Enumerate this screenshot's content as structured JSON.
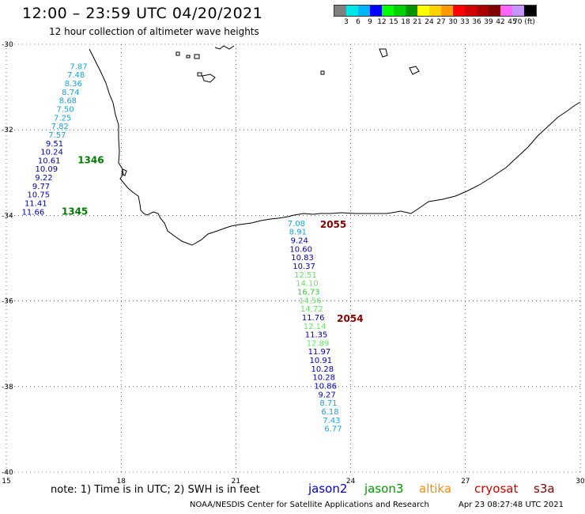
{
  "header": {
    "title": "12:00 – 23:59 UTC 04/20/2021",
    "subtitle": "12 hour collection of altimeter wave heights"
  },
  "legend": {
    "colors": [
      "#808080",
      "#00e6e6",
      "#00b4ff",
      "#0000ff",
      "#00ff00",
      "#00d200",
      "#009600",
      "#ffff00",
      "#ffd200",
      "#ff9b00",
      "#ff0000",
      "#d20000",
      "#aa0000",
      "#800000",
      "#ff64ff",
      "#c896ff",
      "#000000"
    ],
    "labels": [
      "3",
      "6",
      "9",
      "12",
      "15",
      "18",
      "21",
      "24",
      "27",
      "30",
      "33",
      "36",
      "39",
      "42",
      "45",
      "70 (ft)"
    ]
  },
  "map": {
    "lon_range": [
      15,
      30
    ],
    "lat_range": [
      -40,
      -30
    ],
    "lon_ticks": [
      15,
      18,
      21,
      24,
      27,
      30
    ],
    "lat_ticks": [
      -30,
      -32,
      -34,
      -36,
      -38,
      -40
    ],
    "lon_tick_labels": [
      "15",
      "18",
      "21",
      "24",
      "27",
      "30"
    ],
    "lat_tick_labels": [
      "-30",
      "-32",
      "-34",
      "-36",
      "-38",
      "-40"
    ]
  },
  "tracks": [
    {
      "satellite": "jason3",
      "pass_id": "1346",
      "pass_color": "#007a00",
      "points": [
        {
          "lon": 16.89,
          "lat": -30.58,
          "swh": "7.87"
        },
        {
          "lon": 16.82,
          "lat": -30.78,
          "swh": "7.48"
        },
        {
          "lon": 16.75,
          "lat": -30.98,
          "swh": "8.36"
        },
        {
          "lon": 16.68,
          "lat": -31.18,
          "swh": "8.74"
        },
        {
          "lon": 16.61,
          "lat": -31.38,
          "swh": "8.68"
        },
        {
          "lon": 16.54,
          "lat": -31.58,
          "swh": "7.50"
        },
        {
          "lon": 16.47,
          "lat": -31.78,
          "swh": "7.25"
        },
        {
          "lon": 16.4,
          "lat": -31.98,
          "swh": "7.82"
        },
        {
          "lon": 16.33,
          "lat": -32.18,
          "swh": "7.57"
        },
        {
          "lon": 16.26,
          "lat": -32.38,
          "swh": "9.51"
        },
        {
          "lon": 16.19,
          "lat": -32.58,
          "swh": "10.24"
        },
        {
          "lon": 16.12,
          "lat": -32.78,
          "swh": "10.61"
        }
      ]
    },
    {
      "satellite": "jason3",
      "pass_id": "1345",
      "pass_color": "#007a00",
      "points": [
        {
          "lon": 16.05,
          "lat": -32.98,
          "swh": "10.09"
        },
        {
          "lon": 15.98,
          "lat": -33.18,
          "swh": "9.22"
        },
        {
          "lon": 15.91,
          "lat": -33.38,
          "swh": "9.77"
        },
        {
          "lon": 15.84,
          "lat": -33.58,
          "swh": "10.75"
        },
        {
          "lon": 15.77,
          "lat": -33.78,
          "swh": "11.41"
        },
        {
          "lon": 15.7,
          "lat": -33.98,
          "swh": "11.66"
        }
      ]
    },
    {
      "satellite": "cryosat",
      "pass_id": "2055",
      "pass_color": "#800000",
      "points": [
        {
          "lon": 22.58,
          "lat": -34.25,
          "swh": "7.08"
        },
        {
          "lon": 22.62,
          "lat": -34.45,
          "swh": "8.91"
        },
        {
          "lon": 22.66,
          "lat": -34.65,
          "swh": "9.24"
        },
        {
          "lon": 22.7,
          "lat": -34.85,
          "swh": "10.60"
        },
        {
          "lon": 22.74,
          "lat": -35.05,
          "swh": "10.83"
        },
        {
          "lon": 22.78,
          "lat": -35.25,
          "swh": "10.37"
        },
        {
          "lon": 22.82,
          "lat": -35.45,
          "swh": "12.51"
        },
        {
          "lon": 22.86,
          "lat": -35.65,
          "swh": "14.10"
        },
        {
          "lon": 22.9,
          "lat": -35.85,
          "swh": "16.73"
        },
        {
          "lon": 22.94,
          "lat": -36.05,
          "swh": "14.56"
        },
        {
          "lon": 22.98,
          "lat": -36.25,
          "swh": "14.72"
        }
      ]
    },
    {
      "satellite": "cryosat",
      "pass_id": "2054",
      "pass_color": "#800000",
      "points": [
        {
          "lon": 23.02,
          "lat": -36.45,
          "swh": "11.76"
        },
        {
          "lon": 23.06,
          "lat": -36.65,
          "swh": "12.14"
        },
        {
          "lon": 23.1,
          "lat": -36.85,
          "swh": "11.35"
        },
        {
          "lon": 23.14,
          "lat": -37.05,
          "swh": "12.89"
        },
        {
          "lon": 23.18,
          "lat": -37.25,
          "swh": "11.97"
        },
        {
          "lon": 23.22,
          "lat": -37.45,
          "swh": "10.91"
        },
        {
          "lon": 23.26,
          "lat": -37.65,
          "swh": "10.28"
        },
        {
          "lon": 23.3,
          "lat": -37.85,
          "swh": "10.28"
        },
        {
          "lon": 23.34,
          "lat": -38.05,
          "swh": "10.86"
        },
        {
          "lon": 23.38,
          "lat": -38.25,
          "swh": "9.27"
        },
        {
          "lon": 23.42,
          "lat": -38.45,
          "swh": "8.71"
        },
        {
          "lon": 23.46,
          "lat": -38.65,
          "swh": "6.18"
        },
        {
          "lon": 23.5,
          "lat": -38.85,
          "swh": "7.43"
        },
        {
          "lon": 23.54,
          "lat": -39.05,
          "swh": "6.77"
        }
      ]
    }
  ],
  "footer": {
    "note": "note:  1) Time is in UTC;  2) SWH is in feet",
    "satellites": [
      {
        "name": "jason2",
        "color": "#0000cc"
      },
      {
        "name": "jason3",
        "color": "#009900"
      },
      {
        "name": "altika",
        "color": "#ff8c00"
      },
      {
        "name": "cryosat",
        "color": "#cc0000"
      },
      {
        "name": "s3a",
        "color": "#800000"
      }
    ],
    "credit": "NOAA/NESDIS Center for Satellite Applications and Research",
    "timestamp": "Apr 23 08:27:48 UTC 2021"
  }
}
